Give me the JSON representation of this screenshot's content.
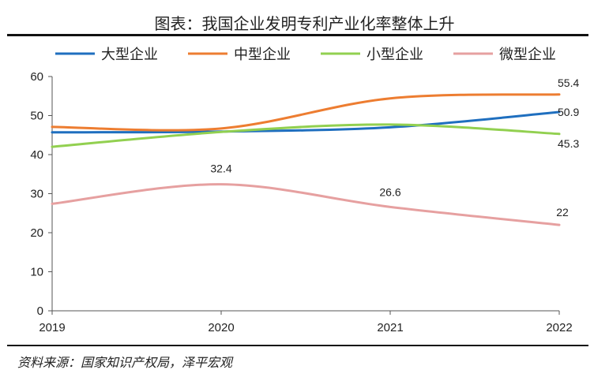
{
  "title": "图表：我国企业发明专利产业化率整体上升",
  "source": "资料来源：国家知识产权局，泽平宏观",
  "chart_data": {
    "type": "line",
    "categories": [
      "2019",
      "2020",
      "2021",
      "2022"
    ],
    "ylim": [
      0,
      60
    ],
    "yticks": [
      0,
      10,
      20,
      30,
      40,
      50,
      60
    ],
    "grid": false,
    "legend_position": "top",
    "series": [
      {
        "name": "大型企业",
        "color": "#1f6fbf",
        "values": [
          45.7,
          45.9,
          47.0,
          50.9
        ],
        "labels": [
          "",
          "",
          "",
          "50.9"
        ]
      },
      {
        "name": "中型企业",
        "color": "#ed7d31",
        "values": [
          47.1,
          46.7,
          54.4,
          55.4
        ],
        "labels": [
          "",
          "",
          "",
          "55.4"
        ]
      },
      {
        "name": "小型企业",
        "color": "#92d050",
        "values": [
          42.0,
          45.8,
          47.7,
          45.3
        ],
        "labels": [
          "",
          "",
          "",
          "45.3"
        ]
      },
      {
        "name": "微型企业",
        "color": "#e6a0a0",
        "values": [
          27.4,
          32.4,
          26.6,
          22.0
        ],
        "labels": [
          "",
          "32.4",
          "26.6",
          "22"
        ]
      }
    ]
  }
}
